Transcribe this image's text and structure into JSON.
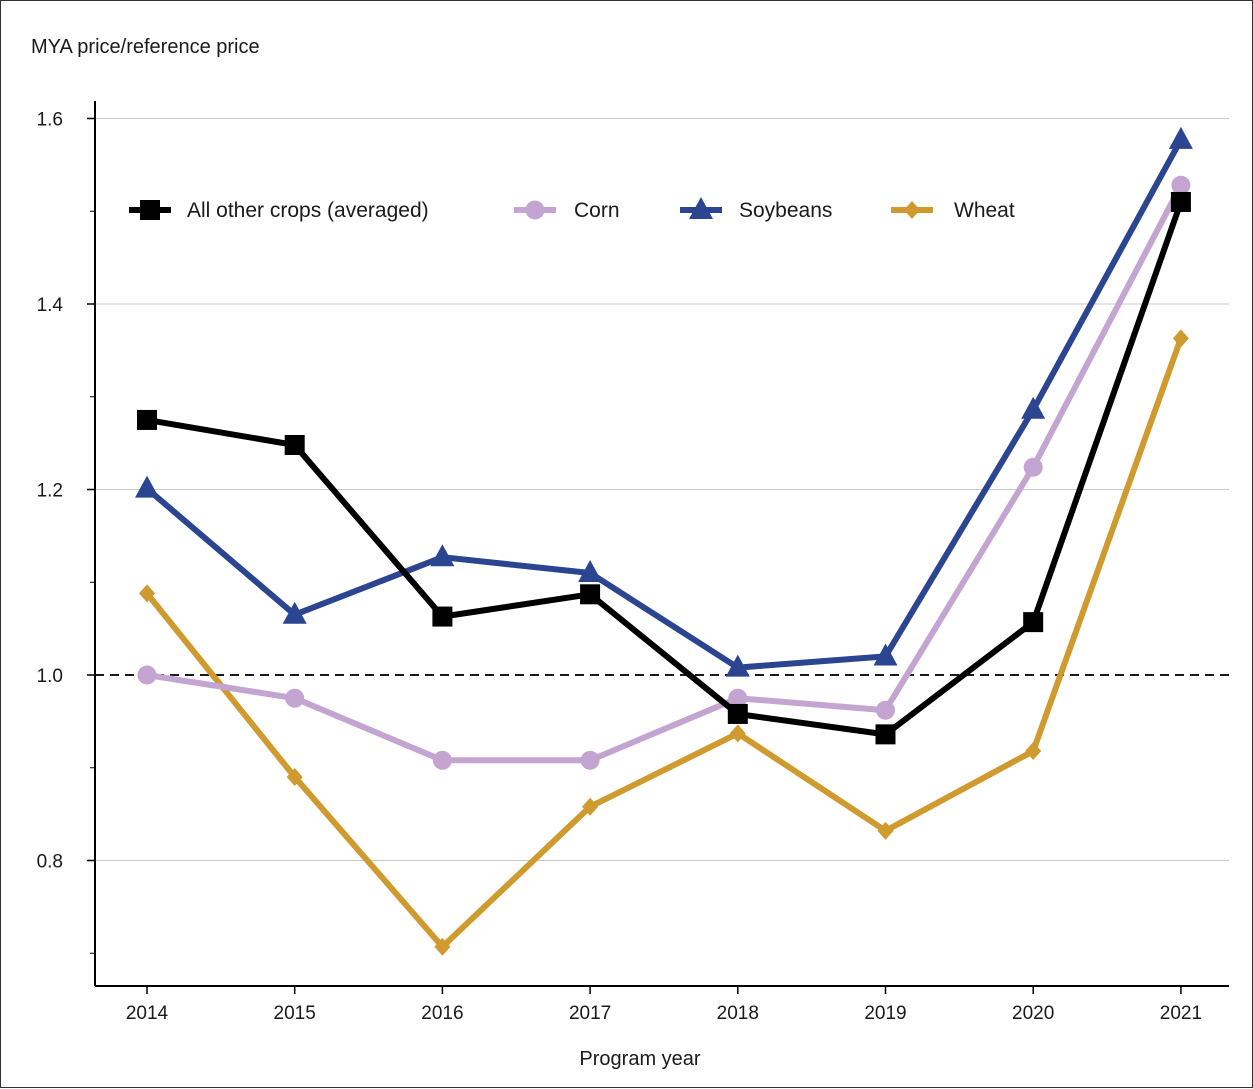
{
  "chart_data": {
    "type": "line",
    "title": "",
    "ylabel": "MYA price/reference price",
    "xlabel": "Program year",
    "x": [
      "2014",
      "2015",
      "2016",
      "2017",
      "2018",
      "2019",
      "2020",
      "2021"
    ],
    "ylim": [
      0.7,
      1.62
    ],
    "yticks": [
      "1.6",
      "1.4",
      "1.2",
      "1.0",
      "0.8"
    ],
    "reference_line": 1.0,
    "grid": "horizontal",
    "legend_position": "top",
    "series": [
      {
        "name": "All other crops (averaged)",
        "color": "#000000",
        "marker": "square",
        "values": [
          1.275,
          1.248,
          1.063,
          1.087,
          0.958,
          0.936,
          1.057,
          1.51
        ]
      },
      {
        "name": "Corn",
        "color": "#c4a5d1",
        "marker": "circle",
        "values": [
          1.0,
          0.975,
          0.908,
          0.908,
          0.975,
          0.962,
          1.224,
          1.528
        ]
      },
      {
        "name": "Soybeans",
        "color": "#2b4590",
        "marker": "triangle",
        "values": [
          1.201,
          1.065,
          1.127,
          1.11,
          1.008,
          1.02,
          1.286,
          1.577
        ]
      },
      {
        "name": "Wheat",
        "color": "#cf9a2e",
        "marker": "diamond",
        "values": [
          1.088,
          0.89,
          0.707,
          0.858,
          0.937,
          0.832,
          0.918,
          1.363
        ]
      }
    ]
  }
}
